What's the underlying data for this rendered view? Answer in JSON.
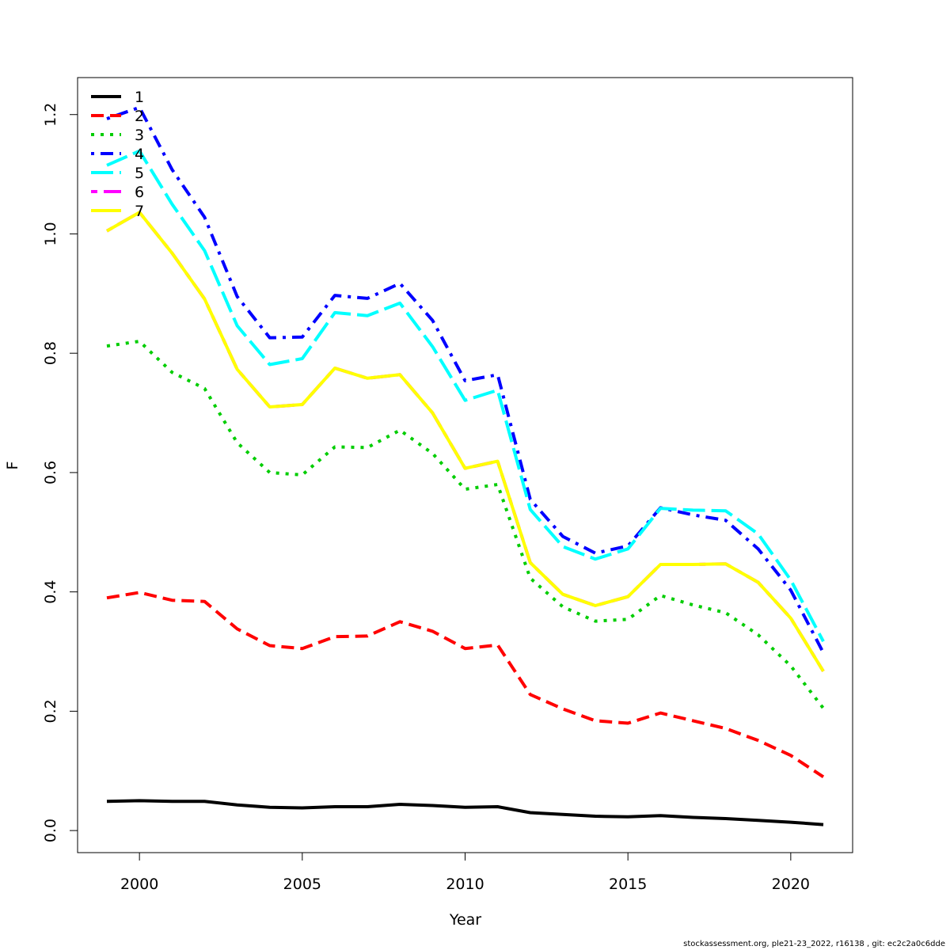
{
  "chart_data": {
    "type": "line",
    "title": "",
    "xlabel": "Year",
    "ylabel": "F",
    "xlim": [
      1998.1,
      2021.9
    ],
    "ylim": [
      -0.037,
      1.262
    ],
    "x_ticks": [
      2000,
      2005,
      2010,
      2015,
      2020
    ],
    "y_ticks": [
      0.0,
      0.2,
      0.4,
      0.6,
      0.8,
      1.0,
      1.2
    ],
    "y_tick_labels": [
      "0.0",
      "0.2",
      "0.4",
      "0.6",
      "0.8",
      "1.0",
      "1.2"
    ],
    "legend_position": "top-left",
    "grid": false,
    "x": [
      1999,
      2000,
      2001,
      2002,
      2003,
      2004,
      2005,
      2006,
      2007,
      2008,
      2009,
      2010,
      2011,
      2012,
      2013,
      2014,
      2015,
      2016,
      2017,
      2018,
      2019,
      2020,
      2021
    ],
    "series": [
      {
        "name": "1",
        "color": "#000000",
        "dash": "solid",
        "values": [
          0.049,
          0.05,
          0.049,
          0.049,
          0.043,
          0.039,
          0.038,
          0.04,
          0.04,
          0.044,
          0.042,
          0.039,
          0.04,
          0.03,
          0.027,
          0.024,
          0.023,
          0.025,
          0.022,
          0.02,
          0.017,
          0.014,
          0.01
        ]
      },
      {
        "name": "2",
        "color": "#ff0000",
        "dash": "dashed",
        "values": [
          0.39,
          0.399,
          0.386,
          0.384,
          0.338,
          0.31,
          0.305,
          0.325,
          0.326,
          0.35,
          0.334,
          0.305,
          0.311,
          0.228,
          0.204,
          0.184,
          0.18,
          0.197,
          0.184,
          0.171,
          0.151,
          0.126,
          0.09
        ]
      },
      {
        "name": "3",
        "color": "#00cd00",
        "dash": "dotted",
        "values": [
          0.812,
          0.82,
          0.768,
          0.741,
          0.65,
          0.6,
          0.596,
          0.643,
          0.642,
          0.671,
          0.632,
          0.572,
          0.58,
          0.423,
          0.375,
          0.351,
          0.354,
          0.394,
          0.378,
          0.365,
          0.328,
          0.276,
          0.205
        ]
      },
      {
        "name": "4",
        "color": "#0000ff",
        "dash": "dotdash",
        "values": [
          1.193,
          1.212,
          1.108,
          1.028,
          0.895,
          0.826,
          0.827,
          0.897,
          0.892,
          0.917,
          0.855,
          0.754,
          0.764,
          0.555,
          0.493,
          0.465,
          0.477,
          0.541,
          0.529,
          0.52,
          0.472,
          0.403,
          0.298
        ]
      },
      {
        "name": "5",
        "color": "#00ffff",
        "dash": "longdash",
        "values": [
          1.115,
          1.139,
          1.05,
          0.972,
          0.846,
          0.781,
          0.791,
          0.868,
          0.863,
          0.884,
          0.811,
          0.721,
          0.738,
          0.538,
          0.476,
          0.455,
          0.472,
          0.54,
          0.537,
          0.536,
          0.497,
          0.42,
          0.317
        ]
      },
      {
        "name": "6",
        "color": "#ff00ff",
        "dash": "twodash",
        "values": [
          1.005,
          1.036,
          0.968,
          0.891,
          0.773,
          0.71,
          0.714,
          0.775,
          0.758,
          0.764,
          0.7,
          0.607,
          0.619,
          0.449,
          0.396,
          0.377,
          0.392,
          0.446,
          0.446,
          0.447,
          0.416,
          0.356,
          0.267
        ]
      },
      {
        "name": "7",
        "color": "#ffff00",
        "dash": "solid",
        "values": [
          1.005,
          1.036,
          0.968,
          0.891,
          0.773,
          0.71,
          0.714,
          0.775,
          0.758,
          0.764,
          0.7,
          0.607,
          0.619,
          0.449,
          0.396,
          0.377,
          0.392,
          0.446,
          0.446,
          0.447,
          0.416,
          0.356,
          0.267
        ]
      }
    ]
  },
  "footer": {
    "text": "stockassessment.org, ple21-23_2022, r16138 , git: ec2c2a0c6dde"
  }
}
